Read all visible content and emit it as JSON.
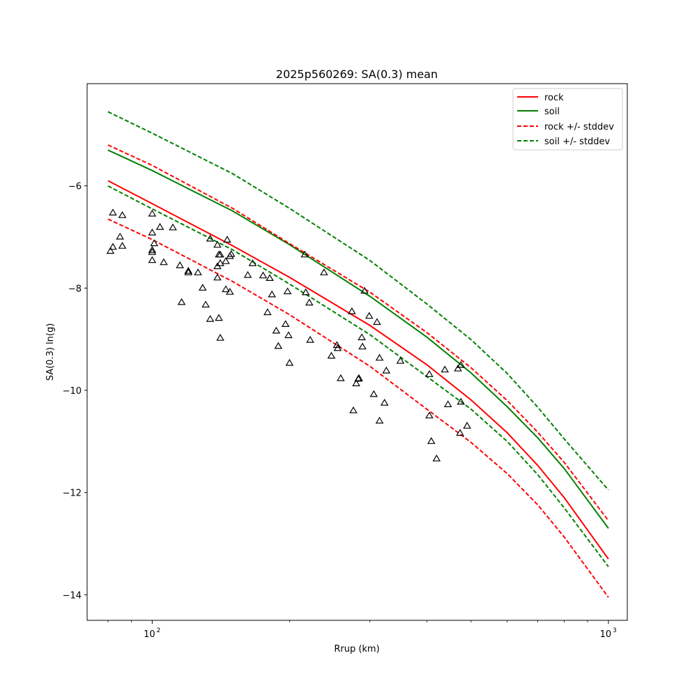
{
  "chart_data": {
    "type": "line",
    "title": "2025p560269: SA(0.3) mean",
    "xlabel": "Rrup (km)",
    "ylabel": "SA(0.3) ln(g)",
    "xscale": "log",
    "xlim": [
      72,
      1100
    ],
    "ylim": [
      -14.5,
      -4.0
    ],
    "xticks": [
      {
        "base": "10",
        "exp": "2",
        "value": 100
      },
      {
        "base": "10",
        "exp": "3",
        "value": 1000
      }
    ],
    "yticks": [
      -14,
      -12,
      -10,
      -8,
      -6
    ],
    "legend_position": "top-right",
    "grid": false,
    "series": [
      {
        "name": "rock",
        "style": "solid",
        "color": "#ff0000",
        "x": [
          80,
          100,
          150,
          200,
          300,
          400,
          500,
          600,
          700,
          800,
          1000
        ],
        "y": [
          -5.9,
          -6.35,
          -7.17,
          -7.79,
          -8.73,
          -9.5,
          -10.19,
          -10.83,
          -11.47,
          -12.1,
          -13.3
        ]
      },
      {
        "name": "soil",
        "style": "solid",
        "color": "#008000",
        "x": [
          80,
          100,
          150,
          200,
          300,
          400,
          500,
          600,
          700,
          800,
          1000
        ],
        "y": [
          -5.3,
          -5.7,
          -6.49,
          -7.15,
          -8.16,
          -8.96,
          -9.66,
          -10.32,
          -10.93,
          -11.53,
          -12.7
        ]
      },
      {
        "name": "rock +/- stddev",
        "style": "dashed",
        "color": "#ff0000",
        "x": [
          80,
          100,
          150,
          200,
          300,
          400,
          500,
          600,
          700,
          800,
          1000
        ],
        "y": [
          -5.2,
          -5.6,
          -6.44,
          -7.13,
          -8.08,
          -8.87,
          -9.56,
          -10.2,
          -10.82,
          -11.41,
          -12.55
        ]
      },
      {
        "name": "",
        "style": "dashed",
        "color": "#ff0000",
        "x": [
          80,
          100,
          150,
          200,
          300,
          400,
          500,
          600,
          700,
          800,
          1000
        ],
        "y": [
          -6.65,
          -7.05,
          -7.87,
          -8.52,
          -9.53,
          -10.37,
          -11.02,
          -11.63,
          -12.24,
          -12.87,
          -14.05
        ]
      },
      {
        "name": "soil +/- stddev",
        "style": "dashed",
        "color": "#008000",
        "x": [
          80,
          100,
          150,
          200,
          300,
          400,
          500,
          600,
          700,
          800,
          1000
        ],
        "y": [
          -4.55,
          -4.97,
          -5.76,
          -6.44,
          -7.46,
          -8.31,
          -9.01,
          -9.67,
          -10.33,
          -10.95,
          -11.95
        ]
      },
      {
        "name": "",
        "style": "dashed",
        "color": "#008000",
        "x": [
          80,
          100,
          150,
          200,
          300,
          400,
          500,
          600,
          700,
          800,
          1000
        ],
        "y": [
          -6.0,
          -6.45,
          -7.25,
          -7.92,
          -8.91,
          -9.73,
          -10.37,
          -11.0,
          -11.65,
          -12.3,
          -13.45
        ]
      }
    ],
    "observations": {
      "marker": "triangle-open",
      "color": "#000000",
      "points": [
        [
          81,
          -7.28
        ],
        [
          82,
          -7.2
        ],
        [
          82,
          -6.53
        ],
        [
          85,
          -7.0
        ],
        [
          86,
          -7.18
        ],
        [
          86,
          -6.58
        ],
        [
          100,
          -6.55
        ],
        [
          100,
          -6.92
        ],
        [
          100,
          -7.3
        ],
        [
          100,
          -7.26
        ],
        [
          101,
          -7.13
        ],
        [
          100,
          -7.46
        ],
        [
          104,
          -6.81
        ],
        [
          106,
          -7.5
        ],
        [
          111,
          -6.82
        ],
        [
          115,
          -7.56
        ],
        [
          116,
          -8.28
        ],
        [
          120,
          -7.67
        ],
        [
          120,
          -7.7
        ],
        [
          126,
          -7.7
        ],
        [
          129,
          -8.0
        ],
        [
          131,
          -8.33
        ],
        [
          134,
          -8.61
        ],
        [
          134,
          -7.04
        ],
        [
          139,
          -7.16
        ],
        [
          139,
          -7.58
        ],
        [
          140,
          -7.35
        ],
        [
          141,
          -7.35
        ],
        [
          141,
          -7.52
        ],
        [
          139,
          -7.8
        ],
        [
          140,
          -8.59
        ],
        [
          141,
          -8.98
        ],
        [
          145,
          -7.48
        ],
        [
          146,
          -7.06
        ],
        [
          145,
          -8.03
        ],
        [
          148,
          -7.38
        ],
        [
          149,
          -7.34
        ],
        [
          148,
          -8.08
        ],
        [
          162,
          -7.75
        ],
        [
          166,
          -7.52
        ],
        [
          175,
          -7.76
        ],
        [
          179,
          -8.48
        ],
        [
          181,
          -7.81
        ],
        [
          183,
          -8.13
        ],
        [
          187,
          -8.84
        ],
        [
          189,
          -9.14
        ],
        [
          196,
          -8.71
        ],
        [
          198,
          -8.07
        ],
        [
          199,
          -8.93
        ],
        [
          200,
          -9.47
        ],
        [
          216,
          -7.35
        ],
        [
          217,
          -8.09
        ],
        [
          221,
          -8.29
        ],
        [
          222,
          -9.02
        ],
        [
          238,
          -7.7
        ],
        [
          247,
          -9.33
        ],
        [
          254,
          -9.12
        ],
        [
          255,
          -9.18
        ],
        [
          259,
          -9.77
        ],
        [
          274,
          -8.46
        ],
        [
          276,
          -10.4
        ],
        [
          280,
          -9.87
        ],
        [
          283,
          -9.78
        ],
        [
          284,
          -9.77
        ],
        [
          288,
          -8.97
        ],
        [
          289,
          -9.15
        ],
        [
          292,
          -8.06
        ],
        [
          299,
          -8.55
        ],
        [
          306,
          -10.08
        ],
        [
          311,
          -8.67
        ],
        [
          315,
          -9.37
        ],
        [
          315,
          -10.6
        ],
        [
          323,
          -10.25
        ],
        [
          326,
          -9.62
        ],
        [
          350,
          -9.43
        ],
        [
          405,
          -9.69
        ],
        [
          405,
          -10.5
        ],
        [
          409,
          -11.0
        ],
        [
          420,
          -11.34
        ],
        [
          438,
          -9.6
        ],
        [
          445,
          -10.28
        ],
        [
          468,
          -9.58
        ],
        [
          475,
          -9.51
        ],
        [
          475,
          -10.23
        ],
        [
          473,
          -10.84
        ],
        [
          490,
          -10.7
        ]
      ]
    }
  }
}
